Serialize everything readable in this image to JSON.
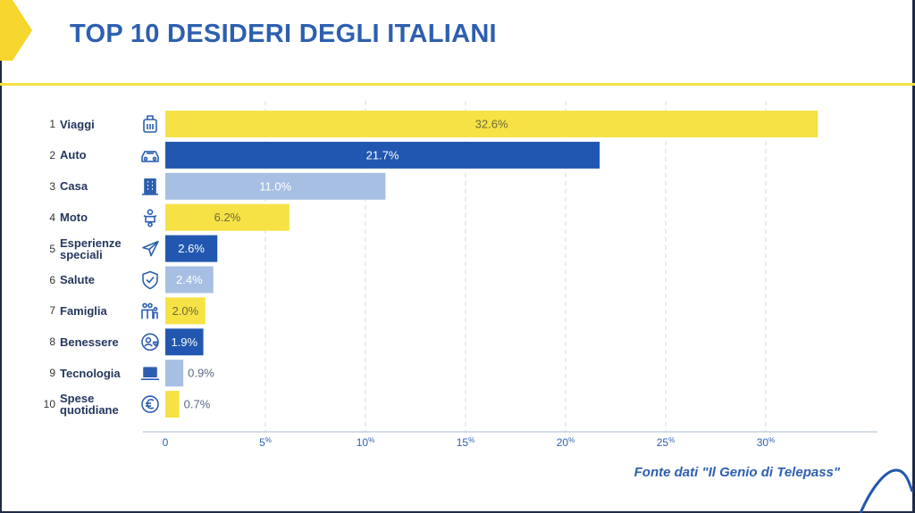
{
  "title": "TOP 10 DESIDERI DEGLI ITALIANI",
  "source": "Fonte dati \"Il Genio di Telepass\"",
  "colors": {
    "yellow": "#f6e245",
    "blue": "#2157b0",
    "lightblue": "#a7bfe3",
    "title": "#2d5fb0",
    "label": "#25375f"
  },
  "chart_data": {
    "type": "bar",
    "orientation": "horizontal",
    "title": "TOP 10 DESIDERI DEGLI ITALIANI",
    "xlabel": "",
    "ylabel": "",
    "xlim": [
      0,
      35
    ],
    "xticks": [
      {
        "value": 0,
        "label": "0",
        "suffix": ""
      },
      {
        "value": 5,
        "label": "5",
        "suffix": "%"
      },
      {
        "value": 10,
        "label": "10",
        "suffix": "%"
      },
      {
        "value": 15,
        "label": "15",
        "suffix": "%"
      },
      {
        "value": 20,
        "label": "20",
        "suffix": "%"
      },
      {
        "value": 25,
        "label": "25",
        "suffix": "%"
      },
      {
        "value": 30,
        "label": "30",
        "suffix": "%"
      }
    ],
    "categories": [
      {
        "rank": "1",
        "label": "Viaggi",
        "icon": "luggage-icon",
        "value": 32.6,
        "value_label": "32.6%",
        "color": "#f6e245"
      },
      {
        "rank": "2",
        "label": "Auto",
        "icon": "car-icon",
        "value": 21.7,
        "value_label": "21.7%",
        "color": "#2157b0"
      },
      {
        "rank": "3",
        "label": "Casa",
        "icon": "building-icon",
        "value": 11.0,
        "value_label": "11.0%",
        "color": "#a7bfe3"
      },
      {
        "rank": "4",
        "label": "Moto",
        "icon": "scooter-icon",
        "value": 6.2,
        "value_label": "6.2%",
        "color": "#f6e245"
      },
      {
        "rank": "5",
        "label": "Esperienze speciali",
        "icon": "paper-plane-icon",
        "value": 2.6,
        "value_label": "2.6%",
        "color": "#2157b0"
      },
      {
        "rank": "6",
        "label": "Salute",
        "icon": "shield-check-icon",
        "value": 2.4,
        "value_label": "2.4%",
        "color": "#a7bfe3"
      },
      {
        "rank": "7",
        "label": "Famiglia",
        "icon": "family-icon",
        "value": 2.0,
        "value_label": "2.0%",
        "color": "#f6e245"
      },
      {
        "rank": "8",
        "label": "Benessere",
        "icon": "wellbeing-icon",
        "value": 1.9,
        "value_label": "1.9%",
        "color": "#2157b0"
      },
      {
        "rank": "9",
        "label": "Tecnologia",
        "icon": "laptop-icon",
        "value": 0.9,
        "value_label": "0.9%",
        "color": "#a7bfe3"
      },
      {
        "rank": "10",
        "label": "Spese quotidiane",
        "icon": "euro-icon",
        "value": 0.7,
        "value_label": "0.7%",
        "color": "#f6e245"
      }
    ]
  }
}
